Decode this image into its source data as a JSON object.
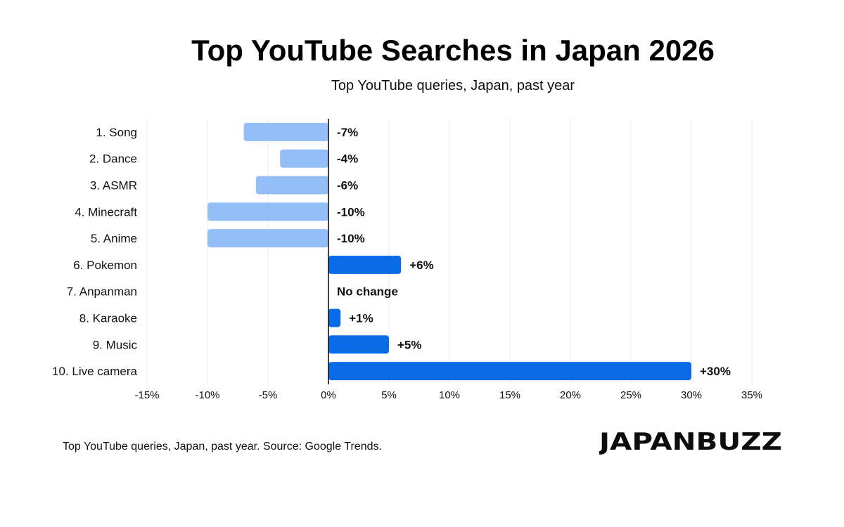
{
  "title": "Top YouTube Searches in Japan 2026",
  "subtitle": "Top YouTube queries, Japan, past year",
  "footer_note": "Top YouTube queries, Japan, past year. Source: Google Trends.",
  "brand_logo": "JAPANBUZZ",
  "colors": {
    "negative_bar": "#93BFF6",
    "positive_bar": "#0A6BE6",
    "gridline": "#E3EEF8",
    "zero_line": "#111111",
    "text": "#111111"
  },
  "chart_data": {
    "type": "bar",
    "orientation": "horizontal",
    "title": "Top YouTube Searches in Japan 2026",
    "subtitle": "Top YouTube queries, Japan, past year",
    "xlabel": "",
    "ylabel": "",
    "xlim": [
      -15,
      35
    ],
    "x_ticks": [
      -15,
      -10,
      -5,
      0,
      5,
      10,
      15,
      20,
      25,
      30,
      35
    ],
    "x_tick_labels": [
      "-15%",
      "-10%",
      "-5%",
      "0%",
      "5%",
      "10%",
      "15%",
      "20%",
      "25%",
      "30%",
      "35%"
    ],
    "grid": true,
    "legend": "none",
    "categories": [
      "1. Song",
      "2. Dance",
      "3. ASMR",
      "4. Minecraft",
      "5. Anime",
      "6. Pokemon",
      "7. Anpanman",
      "8. Karaoke",
      "9. Music",
      "10. Live camera"
    ],
    "values": [
      -7,
      -4,
      -6,
      -10,
      -10,
      6,
      0,
      1,
      5,
      30
    ],
    "data_labels": [
      "-7%",
      "-4%",
      "-6%",
      "-10%",
      "-10%",
      "+6%",
      "No change",
      "+1%",
      "+5%",
      "+30%"
    ]
  }
}
